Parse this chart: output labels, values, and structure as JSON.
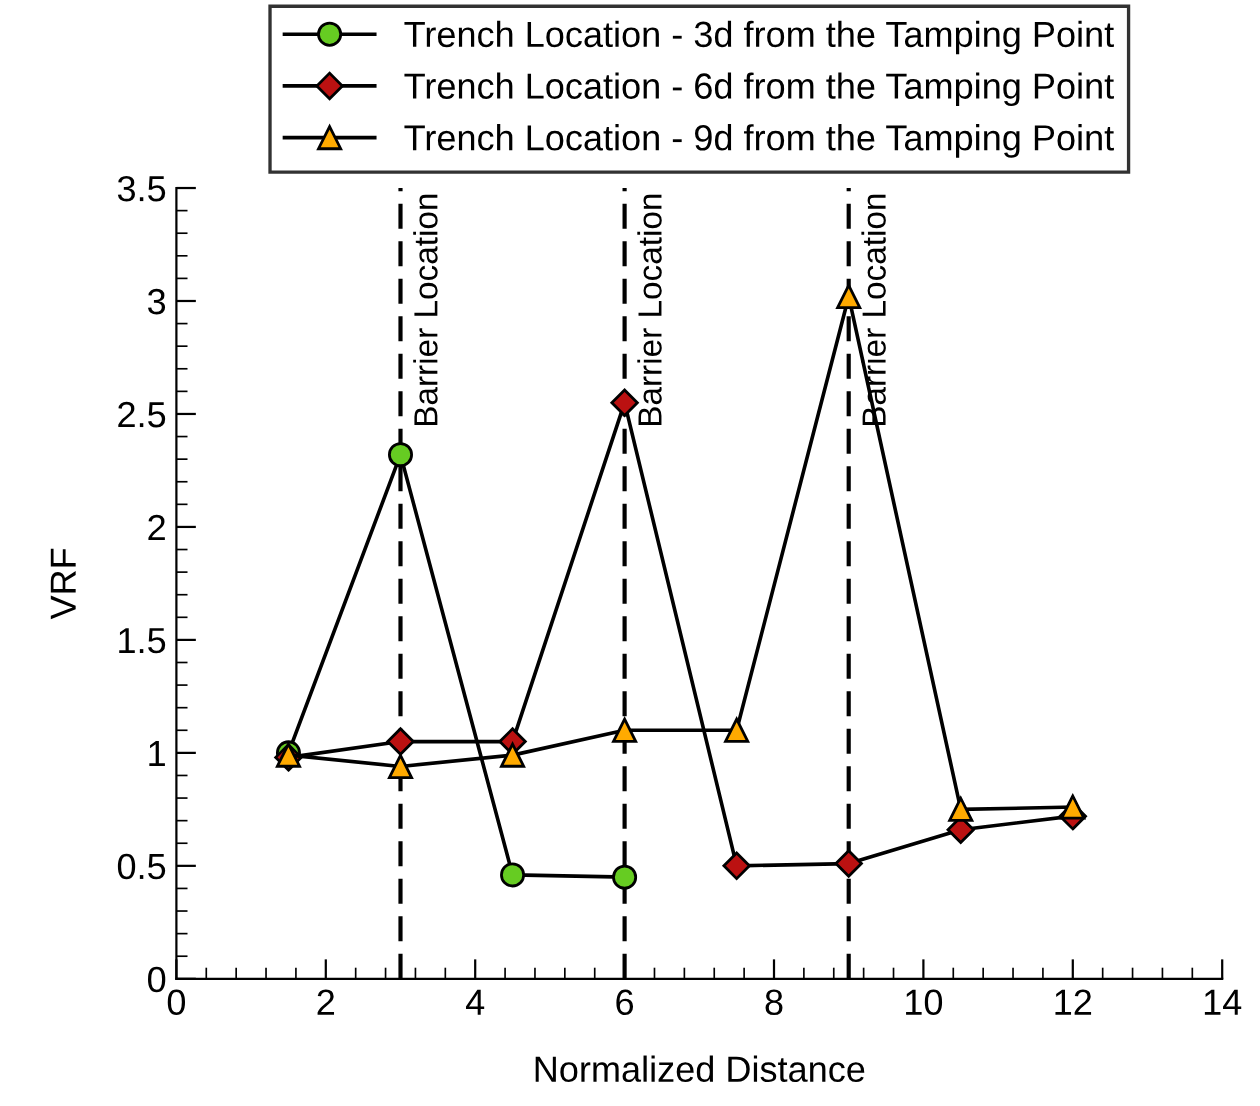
{
  "chart_data": {
    "type": "line",
    "xlabel": "Normalized Distance",
    "ylabel": "VRF",
    "xlim": [
      0,
      14
    ],
    "xticks": [
      0,
      2,
      4,
      6,
      8,
      10,
      12,
      14
    ],
    "ylim": [
      0,
      3.5
    ],
    "yticks": [
      0,
      0.5,
      1,
      1.5,
      2,
      2.5,
      3,
      3.5
    ],
    "grid": false,
    "legend": "top",
    "line_style": "solid",
    "series": [
      {
        "name": "Trench Location - 3d from the Tamping Point",
        "color": "#66cc22",
        "marker": "circle",
        "x": [
          1.5,
          3,
          4.5,
          6
        ],
        "values": [
          1.0,
          2.32,
          0.46,
          0.45
        ]
      },
      {
        "name": "Trench Location - 6d from the Tamping Point",
        "color": "#bb1111",
        "marker": "diamond",
        "x": [
          1.5,
          3,
          4.5,
          6,
          7.5,
          9,
          10.5,
          12
        ],
        "values": [
          0.98,
          1.05,
          1.05,
          2.55,
          0.5,
          0.51,
          0.66,
          0.72
        ]
      },
      {
        "name": "Trench Location - 9d from the Tamping Point",
        "color": "#ffaa00",
        "marker": "triangle",
        "x": [
          1.5,
          3,
          4.5,
          6,
          7.5,
          9,
          10.5,
          12
        ],
        "values": [
          0.99,
          0.94,
          0.99,
          1.1,
          1.1,
          3.02,
          0.75,
          0.76
        ]
      }
    ],
    "ref_lines": [
      {
        "axis": "x",
        "value": 3,
        "label": "Barrier Location",
        "line_style": "dashed"
      },
      {
        "axis": "x",
        "value": 6,
        "label": "Barrier Location",
        "line_style": "dashed"
      },
      {
        "axis": "x",
        "value": 9,
        "label": "Barrier Location",
        "line_style": "dashed"
      }
    ]
  }
}
